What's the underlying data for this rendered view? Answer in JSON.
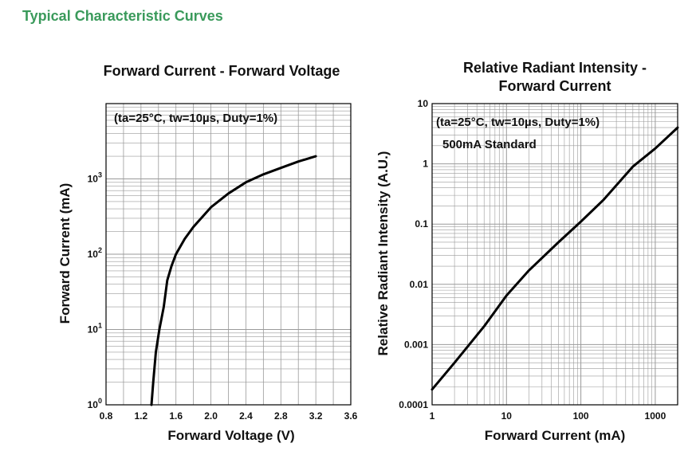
{
  "page": {
    "heading": "Typical Characteristic Curves",
    "colors": {
      "heading": "#3a9a5b",
      "curve": "#000000",
      "grid": "#9a9a9a"
    }
  },
  "chart_data": [
    {
      "type": "line",
      "title": "Forward Current - Forward Voltage",
      "xlabel": "Forward Voltage (V)",
      "ylabel": "Forward Current (mA)",
      "xlim": [
        0.8,
        3.6
      ],
      "ylim": [
        1,
        10000
      ],
      "x_scale": "linear",
      "y_scale": "log",
      "x_ticks": [
        "0.8",
        "1.2",
        "1.6",
        "2.0",
        "2.4",
        "2.8",
        "3.2",
        "3.6"
      ],
      "x_tick_values": [
        0.8,
        1.2,
        1.6,
        2.0,
        2.4,
        2.8,
        3.2,
        3.6
      ],
      "y_ticks": [
        {
          "base": "10",
          "exp": "0"
        },
        {
          "base": "10",
          "exp": "1"
        },
        {
          "base": "10",
          "exp": "2"
        },
        {
          "base": "10",
          "exp": "3"
        }
      ],
      "y_tick_values": [
        1,
        10,
        100,
        1000
      ],
      "annotation": "(ta=25°C, tw=10µs, Duty=1%)",
      "grid": true,
      "series": [
        {
          "x": [
            1.32,
            1.34,
            1.37,
            1.41,
            1.46,
            1.5,
            1.55,
            1.6,
            1.7,
            1.8,
            2.0,
            2.2,
            2.4,
            2.6,
            2.8,
            3.0,
            3.2
          ],
          "y": [
            1,
            2,
            5,
            10,
            20,
            45,
            70,
            100,
            160,
            230,
            420,
            640,
            900,
            1150,
            1400,
            1700,
            2000
          ]
        }
      ]
    },
    {
      "type": "line",
      "title": [
        "Relative Radiant Intensity -",
        "Forward Current"
      ],
      "xlabel": "Forward Current (mA)",
      "ylabel": "Relative Radiant Intensity (A.U.)",
      "xlim": [
        1,
        2000
      ],
      "ylim": [
        0.0001,
        10
      ],
      "x_scale": "log",
      "y_scale": "log",
      "x_ticks": [
        "1",
        "10",
        "100",
        "1000"
      ],
      "x_tick_values": [
        1,
        10,
        100,
        1000
      ],
      "y_ticks": [
        "0.0001",
        "0.001",
        "0.01",
        "0.1",
        "1",
        "10"
      ],
      "y_tick_values": [
        0.0001,
        0.001,
        0.01,
        0.1,
        1,
        10
      ],
      "annotations": [
        "(ta=25°C, tw=10µs, Duty=1%)",
        "500mA Standard"
      ],
      "grid": true,
      "series": [
        {
          "x": [
            1,
            2,
            5,
            10,
            20,
            50,
            100,
            200,
            500,
            1000,
            2000
          ],
          "y": [
            0.00018,
            0.0005,
            0.002,
            0.0065,
            0.017,
            0.05,
            0.11,
            0.25,
            0.9,
            1.8,
            4
          ]
        }
      ]
    }
  ]
}
